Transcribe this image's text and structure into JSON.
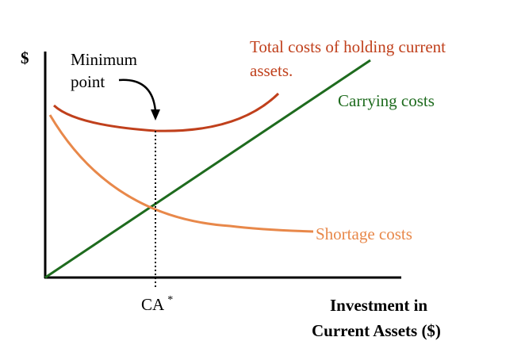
{
  "diagram": {
    "y_axis_label": "$",
    "x_axis_label_line1": "Investment in",
    "x_axis_label_line2": "Current Assets ($)",
    "x_tick_label": "CA",
    "x_tick_superscript": "*",
    "minimum_label_line1": "Minimum",
    "minimum_label_line2": "point",
    "total_label_line1": "Total costs of holding current",
    "total_label_line2": "assets.",
    "carrying_label": "Carrying costs",
    "shortage_label": "Shortage costs",
    "colors": {
      "total_costs": "#c0401c",
      "carrying_costs": "#1e6b1e",
      "shortage_costs": "#e8884a",
      "axes": "#000000"
    }
  }
}
